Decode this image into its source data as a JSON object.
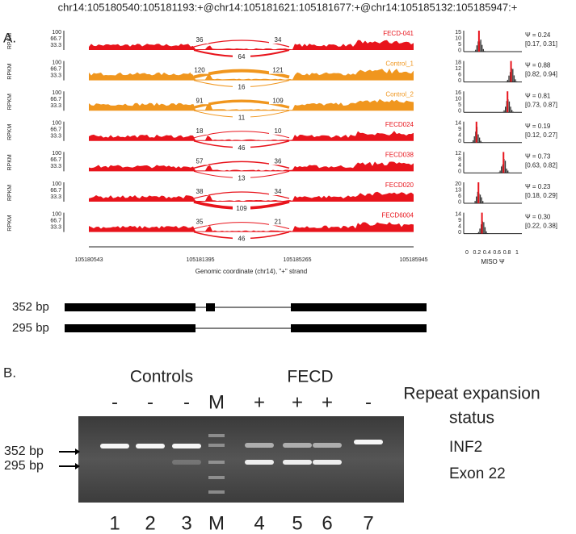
{
  "header": "chr14:105180540:105181193:+@chr14:105181621:105181677:+@chr14:105185132:105185947:+",
  "panel_a": {
    "label": "A.",
    "rpkm_label": "RPKM",
    "rpkm_ticks": [
      "100",
      "66.7",
      "33.3"
    ],
    "tracks": [
      {
        "name": "FECD-041",
        "color": "#e8141c",
        "left": 36,
        "right": 34,
        "bottom": 64,
        "psi": "Ψ = 0.24",
        "ci": "[0.17, 0.31]",
        "hist_ticks": [
          "15",
          "10",
          "5",
          "0"
        ]
      },
      {
        "name": "Control_1",
        "color": "#f0961e",
        "left": 120,
        "right": 121,
        "bottom": 16,
        "psi": "Ψ = 0.88",
        "ci": "[0.82, 0.94]",
        "hist_ticks": [
          "18",
          "12",
          "6",
          "0"
        ]
      },
      {
        "name": "Control_2",
        "color": "#f0961e",
        "left": 91,
        "right": 109,
        "bottom": 11,
        "psi": "Ψ = 0.81",
        "ci": "[0.73, 0.87]",
        "hist_ticks": [
          "16",
          "10",
          "5",
          "0"
        ]
      },
      {
        "name": "FECD024",
        "color": "#e8141c",
        "left": 18,
        "right": 10,
        "bottom": 46,
        "psi": "Ψ = 0.19",
        "ci": "[0.12, 0.27]",
        "hist_ticks": [
          "14",
          "9",
          "4",
          "0"
        ]
      },
      {
        "name": "FECD038",
        "color": "#e8141c",
        "left": 57,
        "right": 36,
        "bottom": 13,
        "psi": "Ψ = 0.73",
        "ci": "[0.63, 0.82]",
        "hist_ticks": [
          "12",
          "8",
          "4",
          "0"
        ]
      },
      {
        "name": "FECD020",
        "color": "#e8141c",
        "left": 38,
        "right": 34,
        "bottom": 109,
        "psi": "Ψ = 0.23",
        "ci": "[0.18, 0.29]",
        "hist_ticks": [
          "20",
          "13",
          "6",
          "0"
        ]
      },
      {
        "name": "FECD6004",
        "color": "#e8141c",
        "left": 35,
        "right": 21,
        "bottom": 46,
        "psi": "Ψ = 0.30",
        "ci": "[0.22, 0.38]",
        "hist_ticks": [
          "14",
          "9",
          "4",
          "0"
        ]
      }
    ],
    "x_ticks": [
      "105180543",
      "105181395",
      "105185265",
      "105185945"
    ],
    "x_label": "Genomic coordinate (chr14), \"+\" strand",
    "hist_x_ticks": [
      "0",
      "0.2",
      "0.4",
      "0.6",
      "0.8",
      "1"
    ],
    "hist_x_label": "MISO Ψ",
    "isoforms": [
      "352 bp",
      "295 bp"
    ]
  },
  "panel_b": {
    "label": "B.",
    "groups": [
      "Controls",
      "FECD"
    ],
    "lane_status": [
      "-",
      "-",
      "-",
      "M",
      "+",
      "+",
      "+",
      "-"
    ],
    "status_title": [
      "Repeat expansion",
      "status"
    ],
    "band_labels": [
      "352 bp",
      "295 bp"
    ],
    "gene_label": [
      "INF2",
      "Exon 22"
    ],
    "lane_numbers": [
      "1",
      "2",
      "3",
      "M",
      "4",
      "5",
      "6",
      "7"
    ]
  }
}
